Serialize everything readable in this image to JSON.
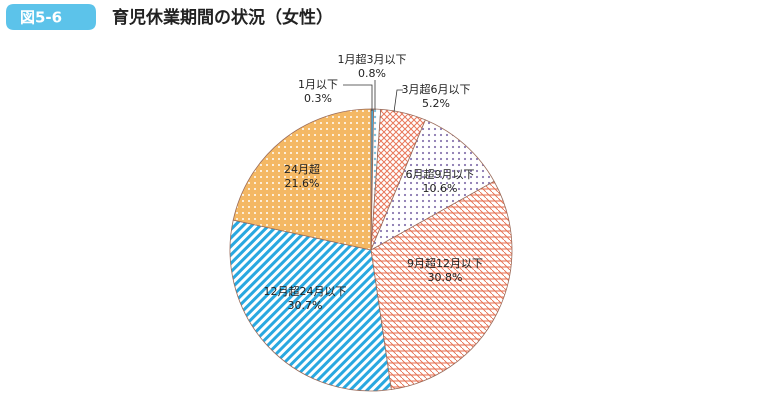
{
  "chart_data": {
    "type": "pie",
    "figure_label": "図5-6",
    "title": "育児休業期間の状況（女性）",
    "categories": [
      "1月以下",
      "1月超3月以下",
      "3月超6月以下",
      "6月超9月以下",
      "9月超12月以下",
      "12月超24月以下",
      "24月超"
    ],
    "values": [
      0.3,
      0.8,
      5.2,
      10.6,
      30.8,
      30.7,
      21.6
    ],
    "value_labels": [
      "0.3%",
      "0.8%",
      "5.2%",
      "10.6%",
      "30.8%",
      "30.7%",
      "21.6%"
    ],
    "colors": [
      "#4aa6cf",
      "#7fbfdc",
      "#e8775a",
      "#8a78b0",
      "#e46a4a",
      "#29a8e0",
      "#f0a030"
    ]
  }
}
